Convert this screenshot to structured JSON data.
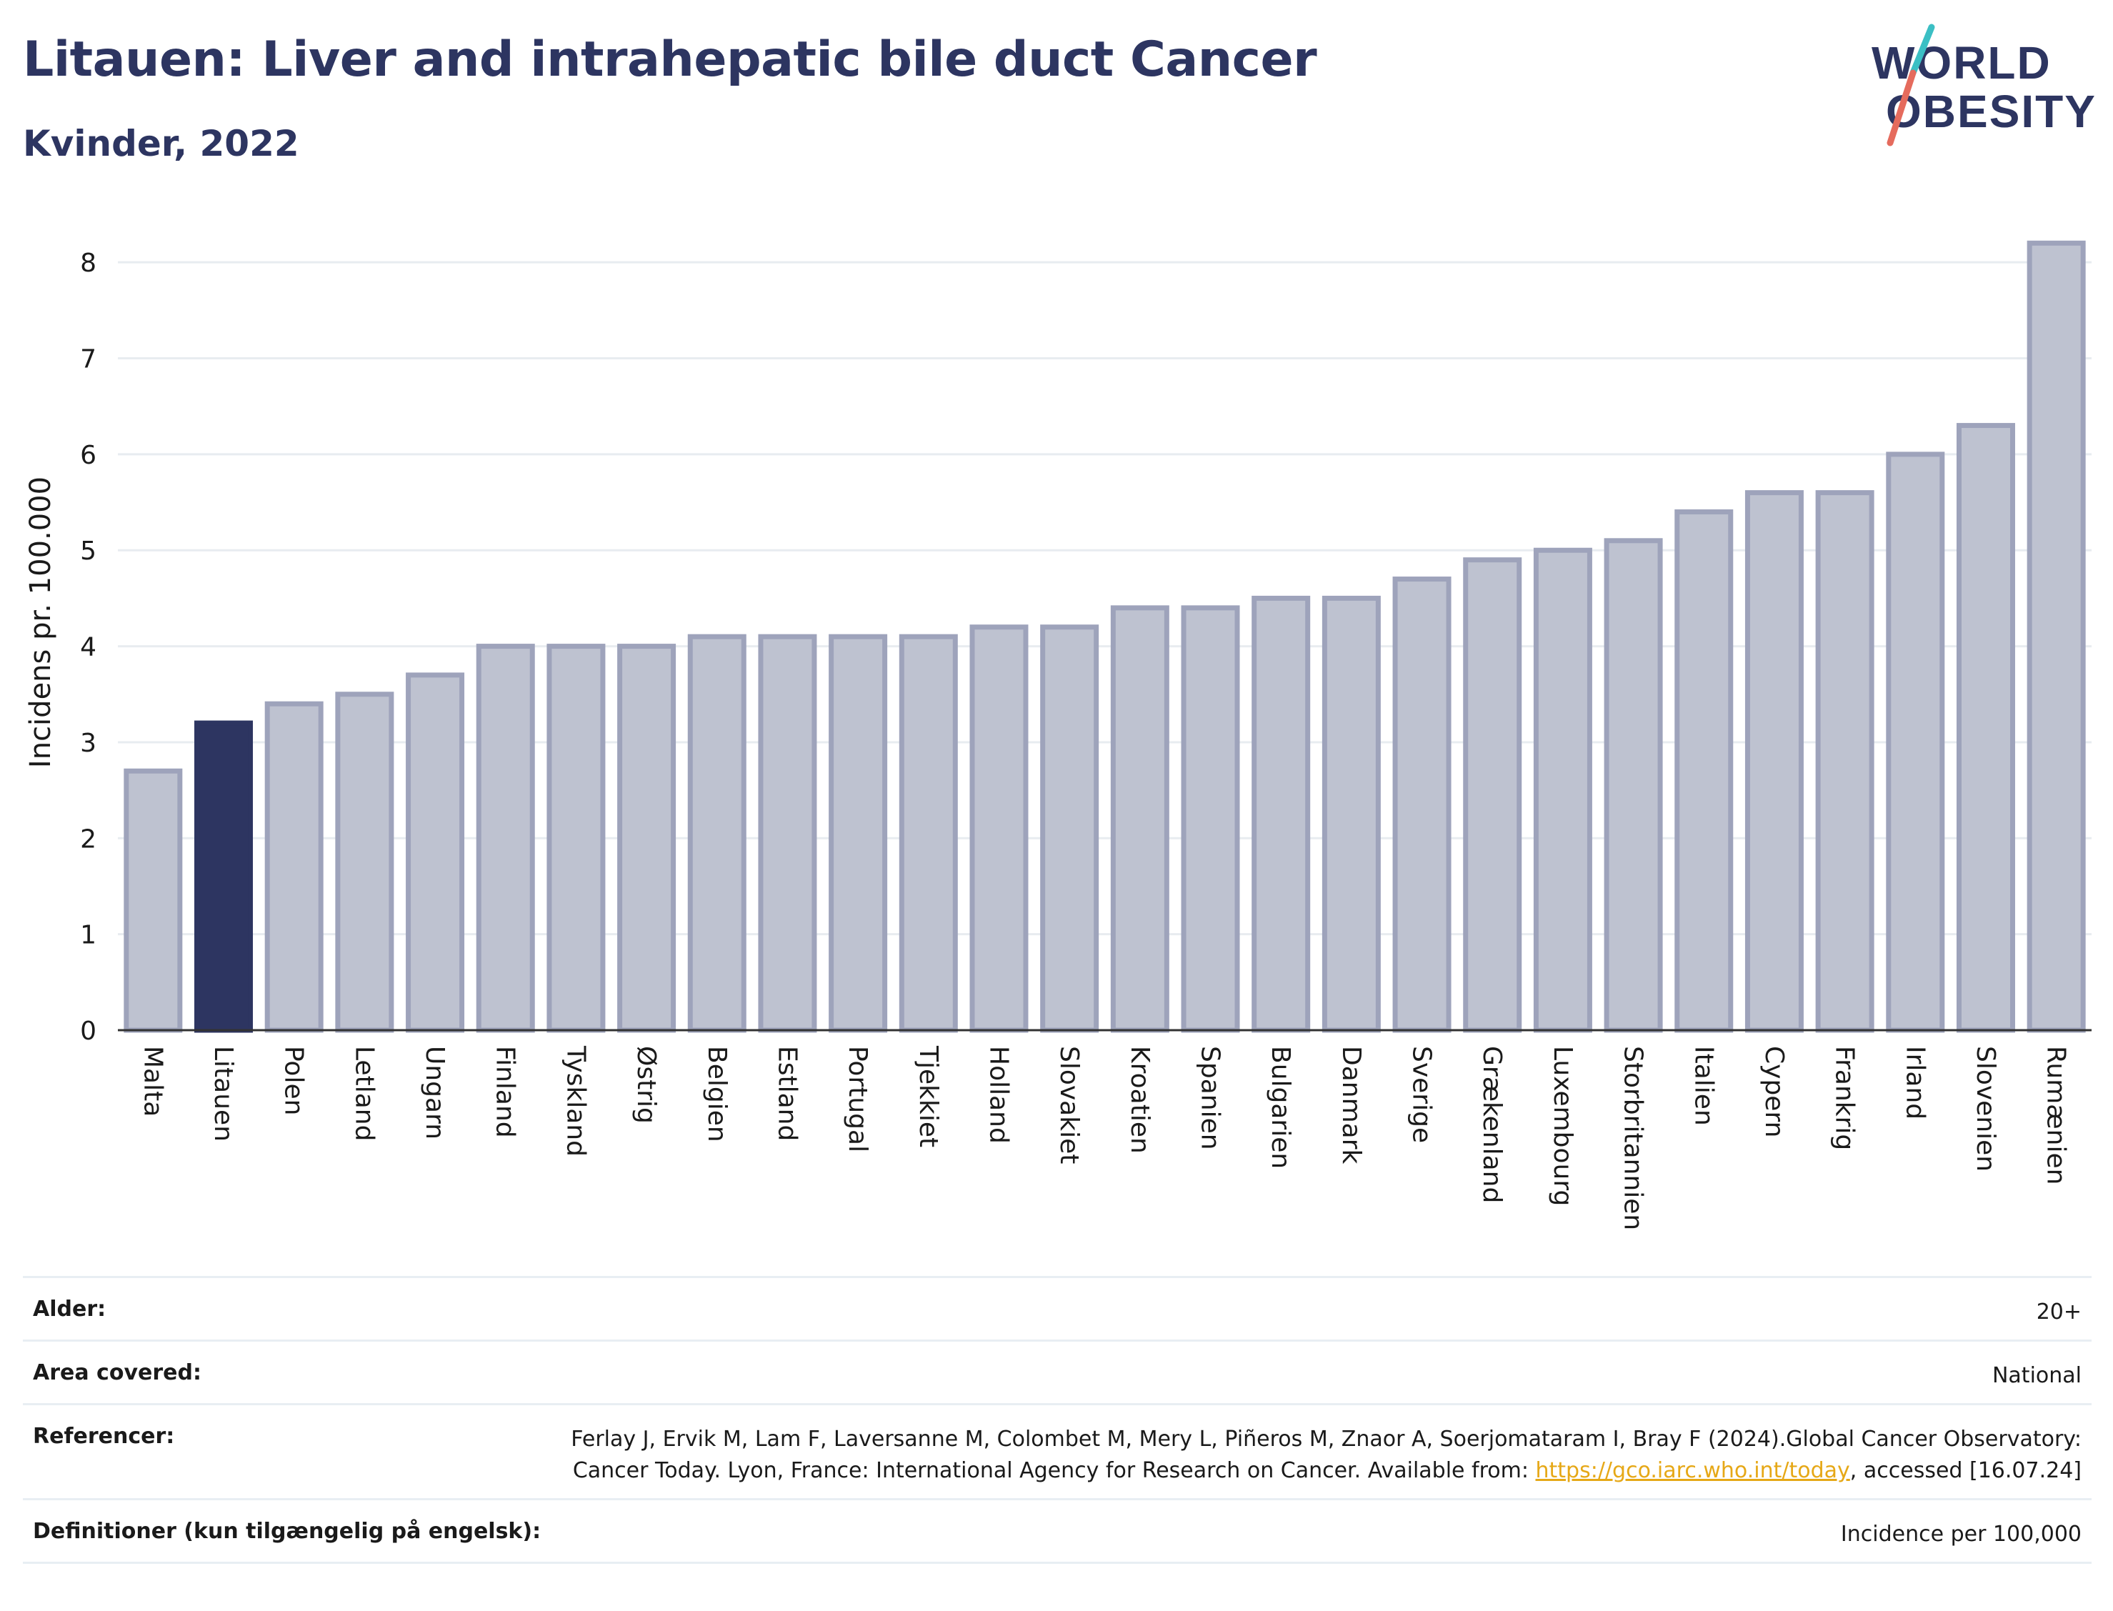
{
  "header": {
    "title": "Litauen: Liver and intrahepatic bile duct Cancer",
    "subtitle": "Kvinder, 2022"
  },
  "logo": {
    "line1": "WORLD",
    "line2": "OBESITY",
    "colors": {
      "text": "#2d3561",
      "slash_teal": "#3bbfc4",
      "slash_coral": "#e56b5d"
    }
  },
  "chart_data": {
    "type": "bar",
    "ylabel": "Incidens pr. 100.000",
    "ylim": [
      0,
      8.5
    ],
    "yticks": [
      "0",
      "1",
      "2",
      "3",
      "4",
      "5",
      "6",
      "7",
      "8"
    ],
    "grid": true,
    "highlight": "Litauen",
    "colors": {
      "bar": "#bec2d0",
      "bar_edge": "#9ea3bb",
      "highlight": "#2d3561",
      "grid": "#e8ecf0"
    },
    "categories": [
      "Malta",
      "Litauen",
      "Polen",
      "Letland",
      "Ungarn",
      "Finland",
      "Tyskland",
      "Østrig",
      "Belgien",
      "Estland",
      "Portugal",
      "Tjekkiet",
      "Holland",
      "Slovakiet",
      "Kroatien",
      "Spanien",
      "Bulgarien",
      "Danmark",
      "Sverige",
      "Grækenland",
      "Luxembourg",
      "Storbritannien",
      "Italien",
      "Cypern",
      "Frankrig",
      "Irland",
      "Slovenien",
      "Rumænien"
    ],
    "values": [
      2.7,
      3.2,
      3.4,
      3.5,
      3.7,
      4.0,
      4.0,
      4.0,
      4.1,
      4.1,
      4.1,
      4.1,
      4.2,
      4.2,
      4.4,
      4.4,
      4.5,
      4.5,
      4.7,
      4.9,
      5.0,
      5.1,
      5.4,
      5.6,
      5.6,
      6.0,
      6.3,
      8.2
    ]
  },
  "info": {
    "age_label": "Alder:",
    "age_value": "20+",
    "area_label": "Area covered:",
    "area_value": "National",
    "ref_label": "Referencer:",
    "ref_text_1": "Ferlay J, Ervik M, Lam F, Laversanne M, Colombet M, Mery L, Piñeros M, Znaor A, Soerjomataram I, Bray F (2024).Global Cancer Observatory: Cancer Today. Lyon, France: International Agency for Research on Cancer. Available from: ",
    "ref_link": "https://gco.iarc.who.int/today",
    "ref_text_2": ", accessed [16.07.24]",
    "def_label": "Definitioner (kun tilgængelig på engelsk):",
    "def_value": "Incidence per 100,000"
  }
}
